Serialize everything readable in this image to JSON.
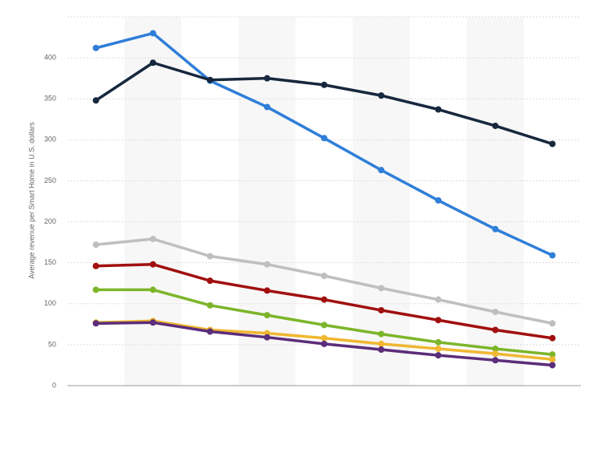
{
  "chart_data": {
    "type": "line",
    "y_label": "Average revenue per Smart Home in U.S. dollars",
    "categories": [
      null,
      null,
      null,
      null,
      null,
      null,
      null,
      null,
      null
    ],
    "ylim": [
      0,
      450
    ],
    "yticks": [
      0,
      50,
      100,
      150,
      200,
      250,
      300,
      350,
      400
    ],
    "grid": true,
    "series": [
      {
        "color": "#2f7ed8",
        "values": [
          412,
          430,
          372,
          340,
          302,
          263,
          226,
          191,
          159
        ]
      },
      {
        "color": "#17283e",
        "values": [
          348,
          394,
          373,
          375,
          367,
          354,
          337,
          317,
          295
        ]
      },
      {
        "color": "#bfbfbf",
        "values": [
          172,
          179,
          158,
          148,
          134,
          119,
          105,
          90,
          76
        ]
      },
      {
        "color": "#a10f0f",
        "values": [
          146,
          148,
          128,
          116,
          105,
          92,
          80,
          68,
          58
        ]
      },
      {
        "color": "#7db52a",
        "values": [
          117,
          117,
          98,
          86,
          74,
          63,
          53,
          45,
          38
        ]
      },
      {
        "color": "#f0b731",
        "values": [
          77,
          79,
          68,
          64,
          58,
          51,
          45,
          39,
          32
        ]
      },
      {
        "color": "#5c2d7a",
        "values": [
          76,
          77,
          66,
          59,
          51,
          44,
          37,
          31,
          25
        ]
      }
    ]
  }
}
